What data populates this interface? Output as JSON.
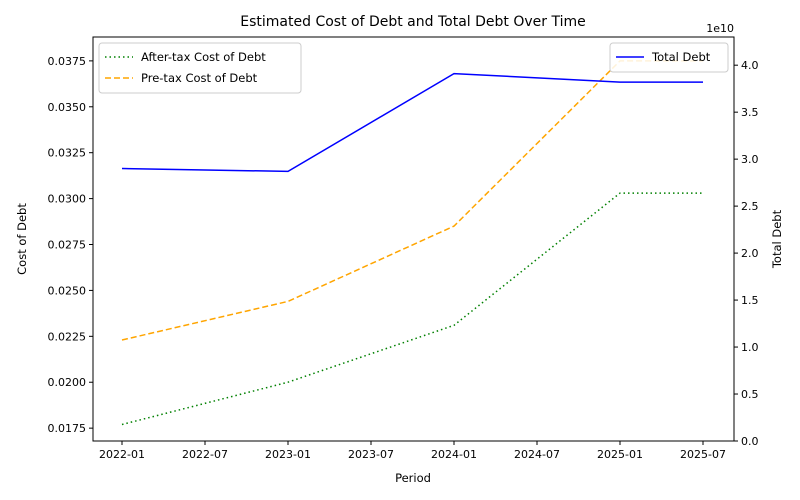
{
  "chart_data": {
    "type": "line",
    "title": "Estimated Cost of Debt and Total Debt Over Time",
    "xlabel": "Period",
    "ylabel": "Cost of Debt",
    "y2label": "Total Debt",
    "y2_exponent_label": "1e10",
    "x": [
      "2022-01",
      "2023-01",
      "2024-01",
      "2025-01",
      "2025-07"
    ],
    "xticks": [
      "2022-01",
      "2022-07",
      "2023-01",
      "2023-07",
      "2024-01",
      "2024-07",
      "2025-01",
      "2025-07"
    ],
    "ylim": [
      0.0168,
      0.0388
    ],
    "yticks": [
      "0.0175",
      "0.0200",
      "0.0225",
      "0.0250",
      "0.0275",
      "0.0300",
      "0.0325",
      "0.0350",
      "0.0375"
    ],
    "y2lim": [
      0,
      4.3
    ],
    "y2ticks": [
      "0.0",
      "0.5",
      "1.0",
      "1.5",
      "2.0",
      "2.5",
      "3.0",
      "3.5",
      "4.0"
    ],
    "series": [
      {
        "name": "After-tax Cost of Debt",
        "axis": "left",
        "color": "#008000",
        "dash": "dotted",
        "values": [
          0.0177,
          0.02,
          0.0231,
          0.0303,
          0.0303
        ]
      },
      {
        "name": "Pre-tax Cost of Debt",
        "axis": "left",
        "color": "#ffa500",
        "dash": "dashed",
        "values": [
          0.0223,
          0.0244,
          0.0285,
          0.0375,
          0.0375
        ]
      },
      {
        "name": "Total Debt",
        "axis": "right",
        "color": "#0000ff",
        "dash": "solid",
        "values": [
          2.9,
          2.87,
          3.91,
          3.82,
          3.82
        ]
      }
    ],
    "legends": {
      "left": "top-left",
      "right": "top-right"
    }
  }
}
